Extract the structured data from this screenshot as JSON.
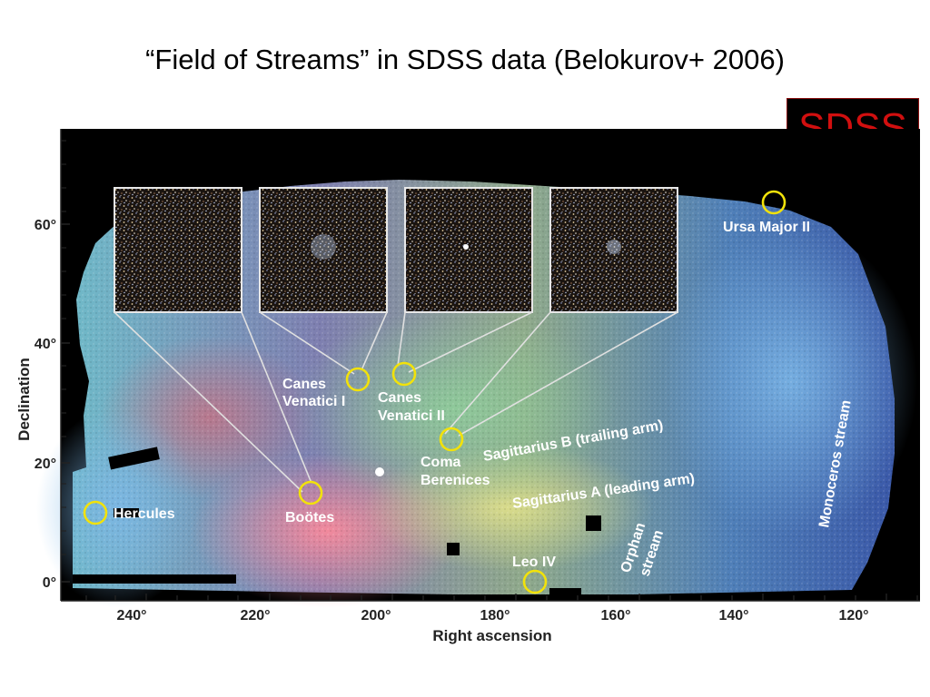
{
  "slide": {
    "title": "“Field of Streams” in SDSS data (Belokurov+ 2006)",
    "badge": "SDSS",
    "badge_color": "#d10f0f"
  },
  "figure": {
    "x_axis_title": "Right ascension",
    "y_axis_title": "Declination",
    "x_ticks": [
      "240°",
      "220°",
      "200°",
      "180°",
      "160°",
      "140°",
      "120°"
    ],
    "y_ticks": [
      "60°",
      "40°",
      "20°",
      "0°"
    ],
    "circle_color": "#f2e20a",
    "objects": [
      {
        "name": "Hercules",
        "lines": [
          "Hercules"
        ]
      },
      {
        "name": "Boötes",
        "lines": [
          "Boötes"
        ]
      },
      {
        "name": "Canes Venatici I",
        "lines": [
          "Canes",
          "Venatici I"
        ]
      },
      {
        "name": "Canes Venatici II",
        "lines": [
          "Canes",
          "Venatici II"
        ]
      },
      {
        "name": "Coma Berenices",
        "lines": [
          "Coma",
          "Berenices"
        ]
      },
      {
        "name": "Leo IV",
        "lines": [
          "Leo IV"
        ]
      },
      {
        "name": "Ursa Major II",
        "lines": [
          "Ursa Major II"
        ]
      }
    ],
    "streams": {
      "sag_b": "Sagittarius B (trailing arm)",
      "sag_a": "Sagittarius A (leading arm)",
      "orphan": [
        "Orphan",
        "stream"
      ],
      "monoceros": "Monoceros stream"
    }
  }
}
